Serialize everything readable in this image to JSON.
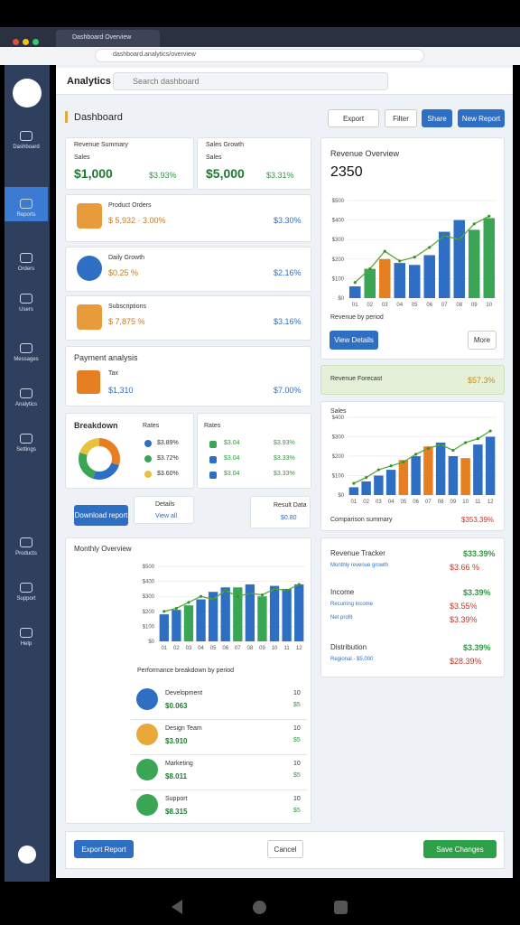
{
  "browser": {
    "tab": "Dashboard Overview",
    "url": "dashboard.analytics/overview"
  },
  "sidebar": [
    "Dashboard",
    "Reports",
    "Orders",
    "Users",
    "Messages",
    "Analytics",
    "Settings",
    "Products",
    "Support",
    "Help"
  ],
  "header": {
    "title": "Analytics",
    "search": "Search dashboard"
  },
  "page": {
    "title": "Dashboard",
    "buttons": [
      "Export",
      "Filter",
      "Share",
      "New Report"
    ]
  },
  "stats": [
    {
      "label": "Revenue Summary",
      "sub": "Sales",
      "value": "$1,000",
      "change": "$3.93%"
    },
    {
      "label": "Sales Growth",
      "sub": "Sales",
      "value": "$5,000",
      "change": "$3.31%"
    }
  ],
  "items": [
    {
      "title": "Product Orders",
      "detail": "$ 5,932 · 3.00%",
      "change": "$3.30%"
    },
    {
      "title": "Daily Growth",
      "detail": "$0.25 %",
      "change": "$2.16%"
    },
    {
      "title": "Subscriptions",
      "detail": "$ 7,875 %",
      "change": "$3.16%"
    }
  ],
  "payment": {
    "title": "Payment analysis",
    "label": "Tax",
    "value": "$1,310",
    "change": "$7.00%"
  },
  "breakdown": {
    "title": "Breakdown",
    "values": [
      30,
      25,
      25,
      20
    ],
    "colors": [
      "#e67e22",
      "#2e6fc4",
      "#3aa655",
      "#e8c23a"
    ],
    "rows": [
      "$3.89%",
      "$3.72%",
      "$3.60%"
    ],
    "rates": [
      {
        "title": "Rates",
        "rows": [
          [
            "$3.04",
            "$3.93%"
          ],
          [
            "$3.04",
            "$3.33%"
          ],
          [
            "$3.04",
            "$3.33%"
          ]
        ]
      }
    ]
  },
  "actions": {
    "primary": "Download report",
    "secondary_title": "Details",
    "secondary": "View all",
    "result_label": "Result Data",
    "result_value": "$0.80"
  },
  "forecast": {
    "label": "Revenue Forecast",
    "value": "$57.3%"
  },
  "charts": [
    {
      "title": "Revenue Overview",
      "value": "2350",
      "categories": [
        "01",
        "02",
        "03",
        "04",
        "05",
        "06",
        "07",
        "08",
        "09",
        "10"
      ],
      "values": [
        60,
        150,
        200,
        180,
        170,
        220,
        340,
        400,
        350,
        410
      ],
      "colors": [
        "#2e6fc4",
        "#3aa655",
        "#e67e22",
        "#2e6fc4",
        "#2e6fc4",
        "#2e6fc4",
        "#2e6fc4",
        "#2e6fc4",
        "#3aa655",
        "#3aa655"
      ],
      "line": [
        80,
        150,
        240,
        190,
        210,
        260,
        320,
        300,
        380,
        420
      ],
      "ylim": [
        0,
        500
      ],
      "yticks": [
        {
          "value": 0,
          "label": "$0"
        },
        {
          "value": 100,
          "label": "$100"
        },
        {
          "value": 200,
          "label": "$200"
        },
        {
          "value": 300,
          "label": "$300"
        },
        {
          "value": 400,
          "label": "$400"
        },
        {
          "value": 500,
          "label": "$500"
        }
      ],
      "caption": "Revenue by period",
      "buttons": [
        "View Details",
        "More"
      ]
    },
    {
      "title": "Sales",
      "categories": [
        "01",
        "02",
        "03",
        "04",
        "05",
        "06",
        "07",
        "08",
        "09",
        "10",
        "11",
        "12"
      ],
      "values": [
        40,
        70,
        100,
        130,
        180,
        200,
        250,
        270,
        200,
        190,
        260,
        300
      ],
      "colors": [
        "#2e6fc4",
        "#2e6fc4",
        "#2e6fc4",
        "#2e6fc4",
        "#e67e22",
        "#2e6fc4",
        "#e67e22",
        "#2e6fc4",
        "#2e6fc4",
        "#e67e22",
        "#2e6fc4",
        "#2e6fc4"
      ],
      "line": [
        60,
        90,
        130,
        150,
        170,
        210,
        240,
        260,
        230,
        270,
        290,
        330
      ],
      "ylim": [
        0,
        400
      ],
      "yticks": [
        {
          "value": 0,
          "label": "$0"
        },
        {
          "value": 100,
          "label": "$100"
        },
        {
          "value": 200,
          "label": "$200"
        },
        {
          "value": 300,
          "label": "$300"
        },
        {
          "value": 400,
          "label": "$400"
        }
      ],
      "caption": "Comparison summary",
      "footer": "$353.39%"
    },
    {
      "title": "Monthly Overview",
      "categories": [
        "01",
        "02",
        "03",
        "04",
        "05",
        "06",
        "07",
        "08",
        "09",
        "10",
        "11",
        "12"
      ],
      "values": [
        180,
        210,
        240,
        280,
        330,
        360,
        360,
        380,
        300,
        370,
        350,
        380
      ],
      "colors": [
        "#2e6fc4",
        "#2e6fc4",
        "#3aa655",
        "#2e6fc4",
        "#2e6fc4",
        "#2e6fc4",
        "#3aa655",
        "#2e6fc4",
        "#3aa655",
        "#2e6fc4",
        "#2e6fc4",
        "#2e6fc4"
      ],
      "line": [
        200,
        220,
        260,
        300,
        280,
        340,
        300,
        320,
        310,
        350,
        340,
        380
      ],
      "ylim": [
        0,
        500
      ],
      "yticks": [
        {
          "value": 0,
          "label": "$0"
        },
        {
          "value": 100,
          "label": "$100"
        },
        {
          "value": 200,
          "label": "$200"
        },
        {
          "value": 300,
          "label": "$300"
        },
        {
          "value": 400,
          "label": "$400"
        },
        {
          "value": 500,
          "label": "$500"
        }
      ],
      "caption": "Performance breakdown by period"
    }
  ],
  "people": [
    {
      "name": "Development",
      "value": "$0.063",
      "count": "10",
      "change": "$5"
    },
    {
      "name": "Design Team",
      "value": "$3.910",
      "count": "10",
      "change": "$5"
    },
    {
      "name": "Marketing",
      "value": "$8.011",
      "count": "10",
      "change": "$5"
    },
    {
      "name": "Support",
      "value": "$8.315",
      "count": "10",
      "change": "$5"
    }
  ],
  "tracker": [
    {
      "title": "Revenue Tracker",
      "value": "$33.39%",
      "sub": "Monthly revenue growth",
      "sub_value": "$3.66 %"
    },
    {
      "title": "Income",
      "value": "$3.39%",
      "sub": "Recurring income",
      "sub_value": "$3.55%",
      "extra": "Net profit",
      "extra_value": "$3.39%"
    },
    {
      "title": "Distribution",
      "value": "$3.39%",
      "sub": "Regional - $5,000",
      "sub_value": "$28.39%"
    }
  ],
  "footer": [
    "Export Report",
    "Cancel",
    "Save Changes"
  ]
}
